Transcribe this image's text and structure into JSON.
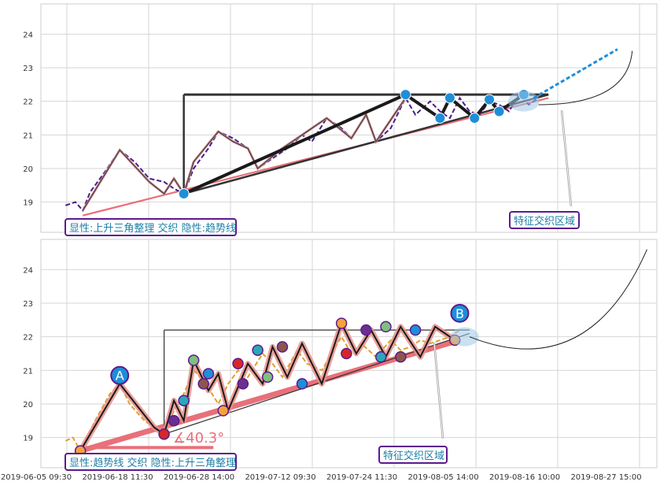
{
  "chart_data": [
    {
      "type": "line",
      "panel": "top",
      "yticks": [
        19,
        20,
        21,
        22,
        23,
        24
      ],
      "ylim": [
        18.1,
        24.9
      ],
      "grid": true,
      "annotation": "显性:上升三角整理 交织 隐性:趋势线",
      "callout": "特征交织区域",
      "price_path": [
        [
          0.0,
          18.9
        ],
        [
          2.0,
          19.0
        ],
        [
          3.5,
          18.75
        ],
        [
          5,
          19.3
        ],
        [
          8,
          19.9
        ],
        [
          11,
          20.55
        ],
        [
          14,
          20.2
        ],
        [
          17,
          19.7
        ],
        [
          20,
          19.6
        ],
        [
          22,
          19.4
        ],
        [
          24,
          19.25
        ],
        [
          26,
          20.0
        ],
        [
          29,
          20.6
        ],
        [
          31,
          21.1
        ],
        [
          34,
          20.9
        ],
        [
          37,
          20.6
        ],
        [
          39,
          20.0
        ],
        [
          42,
          20.3
        ],
        [
          45,
          20.6
        ],
        [
          48,
          21.0
        ],
        [
          50,
          20.8
        ],
        [
          53,
          21.5
        ],
        [
          56,
          21.2
        ],
        [
          58,
          20.9
        ],
        [
          61,
          21.6
        ],
        [
          63,
          20.8
        ],
        [
          66,
          21.2
        ],
        [
          69,
          22.1
        ],
        [
          71,
          21.6
        ],
        [
          74,
          22.0
        ],
        [
          76,
          21.7
        ],
        [
          78,
          21.5
        ],
        [
          80,
          22.1
        ],
        [
          82,
          21.7
        ],
        [
          84,
          21.6
        ],
        [
          86,
          22.0
        ],
        [
          88,
          21.9
        ],
        [
          90,
          21.7
        ],
        [
          92,
          22.2
        ],
        [
          94,
          21.9
        ],
        [
          96,
          22.1
        ]
      ],
      "zigzag": [
        [
          3.5,
          18.75
        ],
        [
          11,
          20.55
        ],
        [
          17,
          19.6
        ],
        [
          20,
          19.25
        ],
        [
          22,
          19.7
        ],
        [
          24,
          19.25
        ],
        [
          26,
          20.2
        ],
        [
          31,
          21.1
        ],
        [
          34,
          20.8
        ],
        [
          37,
          20.6
        ],
        [
          39,
          20.0
        ],
        [
          44,
          20.6
        ],
        [
          48,
          21.0
        ],
        [
          53,
          21.5
        ],
        [
          58,
          20.9
        ],
        [
          61,
          21.6
        ],
        [
          63,
          20.8
        ],
        [
          69,
          22.1
        ]
      ],
      "pivots": [
        [
          24,
          19.25
        ],
        [
          69,
          22.2
        ],
        [
          76,
          21.5
        ],
        [
          78,
          22.1
        ],
        [
          83,
          21.5
        ],
        [
          86,
          22.05
        ],
        [
          88,
          21.7
        ],
        [
          93,
          22.2
        ]
      ],
      "pivot_colors": [
        "#1f8ed6"
      ],
      "top_line": [
        [
          24,
          22.2
        ],
        [
          98,
          22.2
        ]
      ],
      "base_vertical": [
        [
          24,
          19.25
        ],
        [
          24,
          22.2
        ]
      ],
      "trend_up": [
        [
          3.5,
          18.6
        ],
        [
          98,
          22.1
        ]
      ],
      "trend_thin": [
        [
          24,
          19.25
        ],
        [
          98,
          22.2
        ]
      ],
      "forecast": [
        [
          95,
          22.1
        ],
        [
          112,
          23.55
        ]
      ],
      "curve": [
        [
          96,
          21.9
        ],
        [
          115,
          23.5
        ]
      ]
    },
    {
      "type": "line",
      "panel": "bottom",
      "yticks": [
        19,
        20,
        21,
        22,
        23,
        24
      ],
      "ylim": [
        18.1,
        24.9
      ],
      "grid": true,
      "xtick_labels": [
        "2019-06-05 09:30",
        "2019-06-18 11:30",
        "2019-06-28 14:00",
        "2019-07-12 09:30",
        "2019-07-24 11:30",
        "2019-08-05 14:00",
        "2019-08-16 10:00",
        "2019-08-27 15:00"
      ],
      "annotation": "显性:趋势线 交织 隐性:上升三角整理",
      "callout": "特征交织区域",
      "angle_label": "∡40.3°",
      "point_labels": [
        "A",
        "B"
      ],
      "price_path": [
        [
          0.0,
          18.9
        ],
        [
          1.5,
          19.0
        ],
        [
          3,
          18.6
        ],
        [
          6,
          19.5
        ],
        [
          9,
          20.3
        ],
        [
          11,
          20.6
        ],
        [
          13,
          20.0
        ],
        [
          16,
          19.5
        ],
        [
          18,
          19.3
        ],
        [
          20,
          19.1
        ],
        [
          22,
          19.8
        ],
        [
          24,
          20.3
        ],
        [
          26,
          21.0
        ],
        [
          28,
          20.7
        ],
        [
          31,
          20.0
        ],
        [
          33,
          20.6
        ],
        [
          35,
          21.0
        ],
        [
          37,
          20.8
        ],
        [
          40,
          21.5
        ],
        [
          42,
          21.2
        ],
        [
          44,
          20.8
        ],
        [
          47,
          21.6
        ],
        [
          49,
          21.2
        ],
        [
          52,
          21.0
        ],
        [
          56,
          22.0
        ],
        [
          58,
          21.5
        ],
        [
          60,
          21.8
        ],
        [
          63,
          21.4
        ],
        [
          66,
          21.9
        ],
        [
          68,
          21.6
        ],
        [
          70,
          21.7
        ],
        [
          72,
          21.9
        ],
        [
          74,
          21.8
        ],
        [
          78,
          22.0
        ],
        [
          80,
          22.2
        ]
      ],
      "zigzag": [
        [
          3,
          18.6
        ],
        [
          11,
          20.6
        ],
        [
          18,
          19.3
        ],
        [
          20,
          19.1
        ],
        [
          22,
          20.1
        ],
        [
          24,
          19.5
        ],
        [
          26,
          21.3
        ],
        [
          29,
          20.4
        ],
        [
          31,
          20.9
        ],
        [
          33,
          19.8
        ],
        [
          37,
          21.2
        ],
        [
          40,
          20.6
        ],
        [
          42,
          21.7
        ],
        [
          45,
          20.8
        ],
        [
          48,
          21.8
        ],
        [
          52,
          20.6
        ],
        [
          56,
          22.4
        ],
        [
          59,
          21.5
        ],
        [
          62,
          22.2
        ],
        [
          65,
          21.4
        ],
        [
          68,
          22.3
        ],
        [
          72,
          21.4
        ],
        [
          75,
          22.3
        ],
        [
          79,
          21.9
        ]
      ],
      "pivots_small": [
        [
          3,
          18.6
        ],
        [
          20,
          19.1
        ],
        [
          22,
          19.5
        ],
        [
          24,
          20.1
        ],
        [
          26,
          21.3
        ],
        [
          28,
          20.6
        ],
        [
          29,
          20.9
        ],
        [
          32,
          19.8
        ],
        [
          35,
          21.2
        ],
        [
          36,
          20.6
        ],
        [
          39,
          21.6
        ],
        [
          41,
          20.8
        ],
        [
          44,
          21.7
        ],
        [
          48,
          20.6
        ],
        [
          56,
          22.4
        ],
        [
          57,
          21.5
        ],
        [
          61,
          22.2
        ],
        [
          64,
          21.4
        ],
        [
          65,
          22.3
        ],
        [
          68,
          21.4
        ],
        [
          71,
          22.2
        ],
        [
          79,
          21.9
        ]
      ],
      "pivot_colors": [
        "#f5a23a",
        "#d62728",
        "#6b2f8f",
        "#2aa7b8",
        "#7fbf7f",
        "#8c564b",
        "#1f8ed6"
      ],
      "top_line": [
        [
          20,
          22.2
        ],
        [
          82,
          22.2
        ]
      ],
      "base_vertical": [
        [
          20,
          19.1
        ],
        [
          20,
          22.2
        ]
      ],
      "trend_up": [
        [
          3,
          18.6
        ],
        [
          80,
          21.9
        ]
      ],
      "trend_thin": [
        [
          20,
          19.1
        ],
        [
          82,
          22.1
        ]
      ],
      "horizontal_base": [
        [
          3,
          18.7
        ],
        [
          30,
          18.7
        ]
      ],
      "forecast_curve": [
        [
          82,
          22.0
        ],
        [
          118,
          24.6
        ]
      ]
    }
  ]
}
